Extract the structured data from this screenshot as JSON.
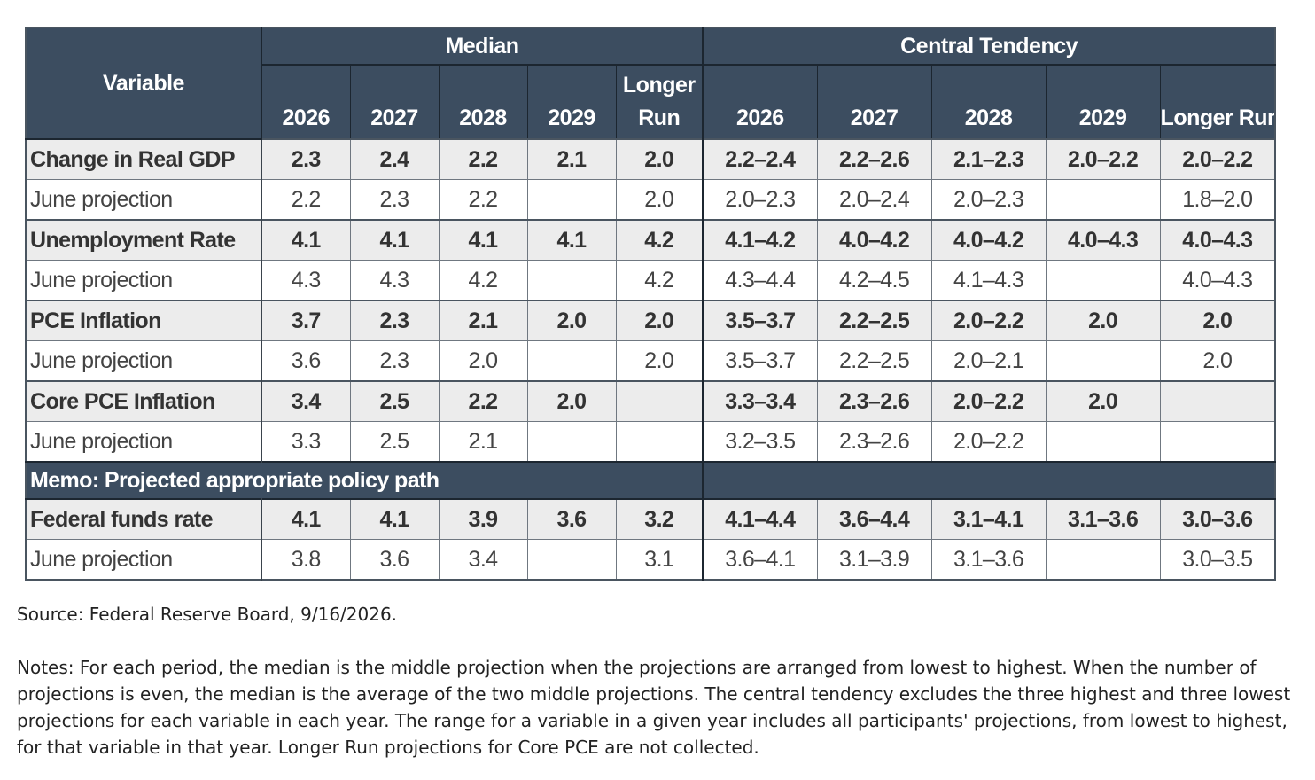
{
  "table": {
    "header": {
      "variable": "Variable",
      "median": "Median",
      "central_tendency": "Central Tendency",
      "median_years": [
        "2026",
        "2027",
        "2028",
        "2029",
        "Longer Run"
      ],
      "ct_years": [
        "2026",
        "2027",
        "2028",
        "2029",
        "Longer Run"
      ]
    },
    "rows": {
      "gdp": {
        "label": "Change in Real GDP",
        "median": [
          "2.3",
          "2.4",
          "2.2",
          "2.1",
          "2.0"
        ],
        "ct": [
          "2.2–2.4",
          "2.2–2.6",
          "2.1–2.3",
          "2.0–2.2",
          "2.0–2.2"
        ]
      },
      "gdp_june": {
        "label": "June projection",
        "median": [
          "2.2",
          "2.3",
          "2.2",
          "",
          "2.0"
        ],
        "ct": [
          "2.0–2.3",
          "2.0–2.4",
          "2.0–2.3",
          "",
          "1.8–2.0"
        ]
      },
      "unemp": {
        "label": "Unemployment Rate",
        "median": [
          "4.1",
          "4.1",
          "4.1",
          "4.1",
          "4.2"
        ],
        "ct": [
          "4.1–4.2",
          "4.0–4.2",
          "4.0–4.2",
          "4.0–4.3",
          "4.0–4.3"
        ]
      },
      "unemp_june": {
        "label": "June projection",
        "median": [
          "4.3",
          "4.3",
          "4.2",
          "",
          "4.2"
        ],
        "ct": [
          "4.3–4.4",
          "4.2–4.5",
          "4.1–4.3",
          "",
          "4.0–4.3"
        ]
      },
      "pce": {
        "label": "PCE Inflation",
        "median": [
          "3.7",
          "2.3",
          "2.1",
          "2.0",
          "2.0"
        ],
        "ct": [
          "3.5–3.7",
          "2.2–2.5",
          "2.0–2.2",
          "2.0",
          "2.0"
        ]
      },
      "pce_june": {
        "label": "June projection",
        "median": [
          "3.6",
          "2.3",
          "2.0",
          "",
          "2.0"
        ],
        "ct": [
          "3.5–3.7",
          "2.2–2.5",
          "2.0–2.1",
          "",
          "2.0"
        ]
      },
      "core": {
        "label": "Core PCE Inflation",
        "median": [
          "3.4",
          "2.5",
          "2.2",
          "2.0",
          ""
        ],
        "ct": [
          "3.3–3.4",
          "2.3–2.6",
          "2.0–2.2",
          "2.0",
          ""
        ]
      },
      "core_june": {
        "label": "June projection",
        "median": [
          "3.3",
          "2.5",
          "2.1",
          "",
          ""
        ],
        "ct": [
          "3.2–3.5",
          "2.3–2.6",
          "2.0–2.2",
          "",
          ""
        ]
      },
      "memo": {
        "label": "Memo: Projected appropriate policy path"
      },
      "ffr": {
        "label": "Federal funds rate",
        "median": [
          "4.1",
          "4.1",
          "3.9",
          "3.6",
          "3.2"
        ],
        "ct": [
          "4.1–4.4",
          "3.6–4.4",
          "3.1–4.1",
          "3.1–3.6",
          "3.0–3.6"
        ]
      },
      "ffr_june": {
        "label": "June projection",
        "median": [
          "3.8",
          "3.6",
          "3.4",
          "",
          "3.1"
        ],
        "ct": [
          "3.6–4.1",
          "3.1–3.9",
          "3.1–3.6",
          "",
          "3.0–3.5"
        ]
      }
    }
  },
  "source": "Source: Federal Reserve Board, 9/16/2026.",
  "notes": "Notes: For each period, the median is the middle projection when the projections are arranged from lowest to highest. When the number of projections is even, the median is the average of the two middle projections. The central tendency excludes the three highest and three lowest projections for each variable in each year. The range for a variable in a given year includes all participants' projections, from lowest to highest, for that variable in that year. Longer Run projections for Core PCE are not collected."
}
